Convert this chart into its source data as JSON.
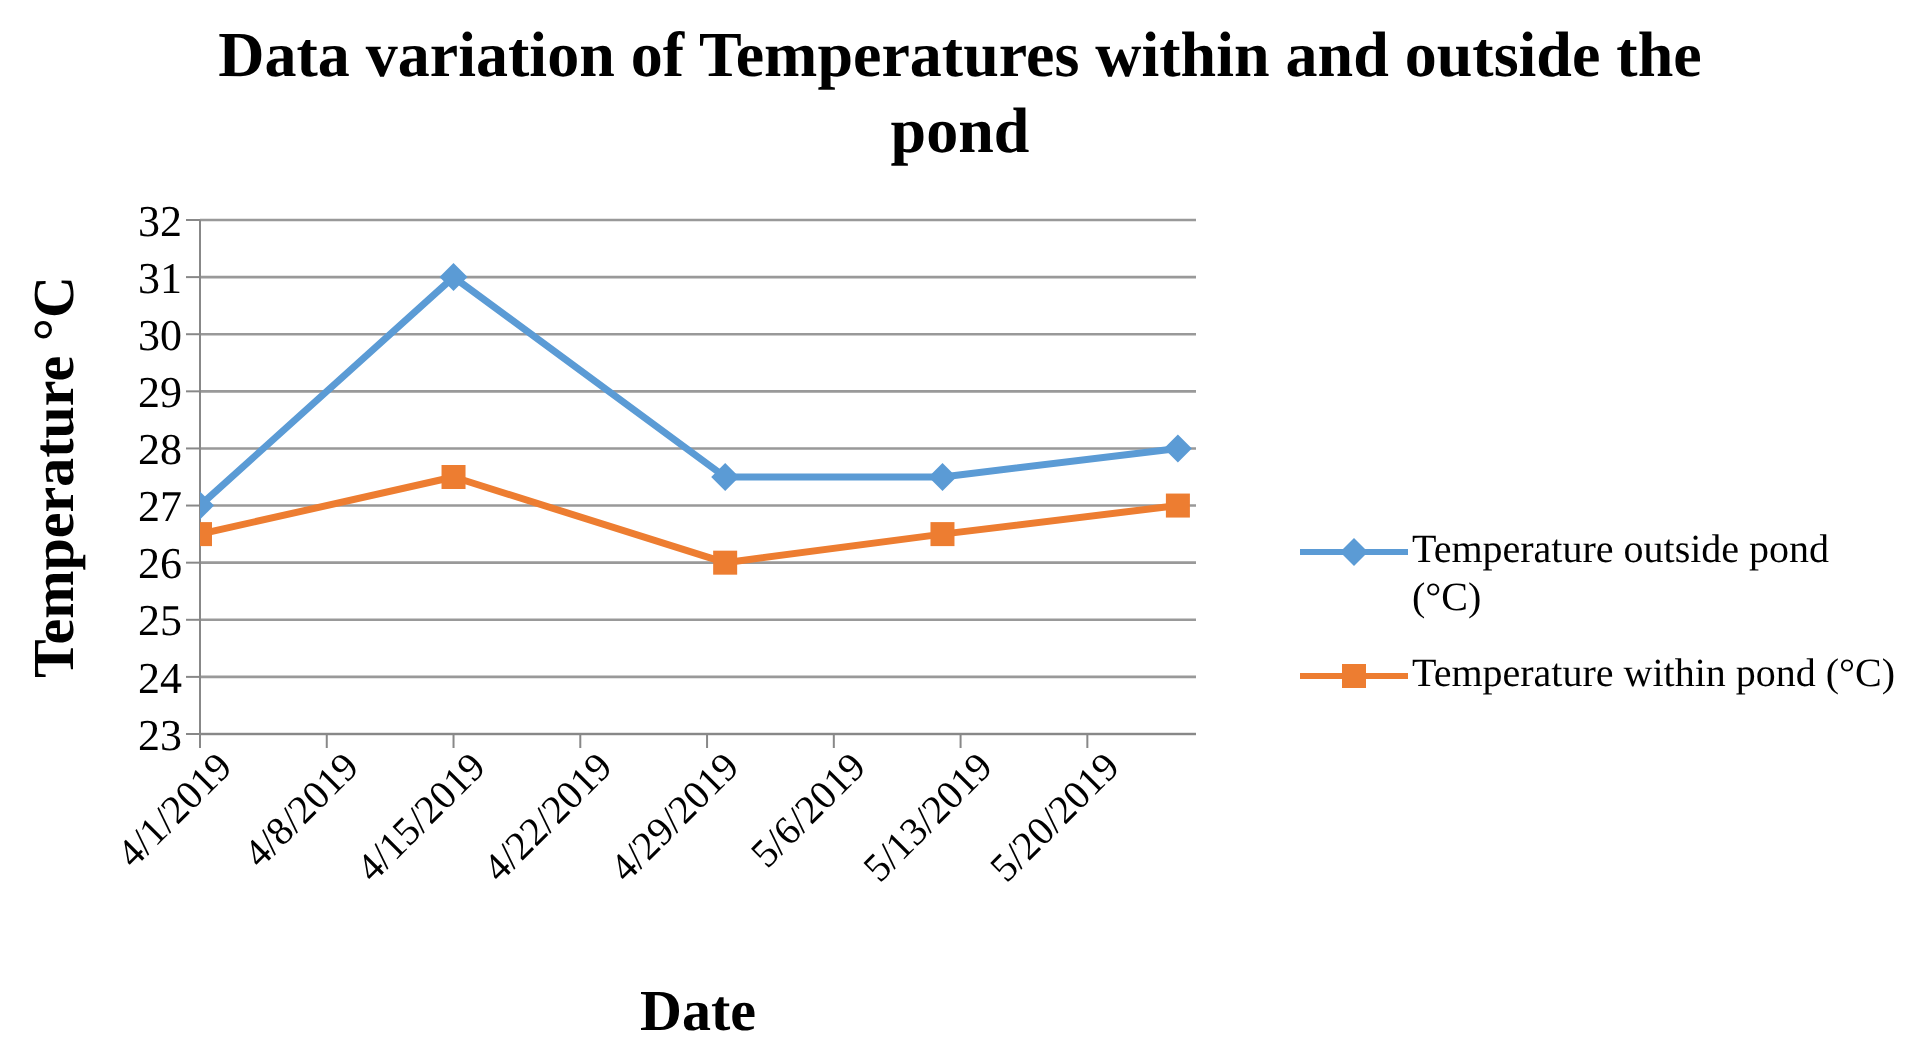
{
  "chart_data": {
    "type": "line",
    "title": "Data variation of Temperatures within and outside the pond",
    "xlabel": "Date",
    "ylabel": "Temperature °C",
    "x": [
      "2019-04-01",
      "2019-04-15",
      "2019-04-30",
      "2019-05-12",
      "2019-05-25"
    ],
    "series": [
      {
        "name": "Temperature outside pond (°C)",
        "color": "#5b9bd5",
        "marker": "diamond",
        "values": [
          27,
          31,
          27.5,
          27.5,
          28
        ]
      },
      {
        "name": "Temperature within pond (°C)",
        "color": "#ed7d31",
        "marker": "square",
        "values": [
          26.5,
          27.5,
          26,
          26.5,
          27
        ]
      }
    ],
    "xlim": [
      "2019-04-01",
      "2019-05-26"
    ],
    "xticks": [
      {
        "value": "2019-04-01",
        "label": "4/1/2019"
      },
      {
        "value": "2019-04-08",
        "label": "4/8/2019"
      },
      {
        "value": "2019-04-15",
        "label": "4/15/2019"
      },
      {
        "value": "2019-04-22",
        "label": "4/22/2019"
      },
      {
        "value": "2019-04-29",
        "label": "4/29/2019"
      },
      {
        "value": "2019-05-06",
        "label": "5/6/2019"
      },
      {
        "value": "2019-05-13",
        "label": "5/13/2019"
      },
      {
        "value": "2019-05-20",
        "label": "5/20/2019"
      }
    ],
    "ylim": [
      23,
      32
    ],
    "yticks": [
      23,
      24,
      25,
      26,
      27,
      28,
      29,
      30,
      31,
      32
    ],
    "grid": "y",
    "legend": "right",
    "line_style": "solid"
  }
}
